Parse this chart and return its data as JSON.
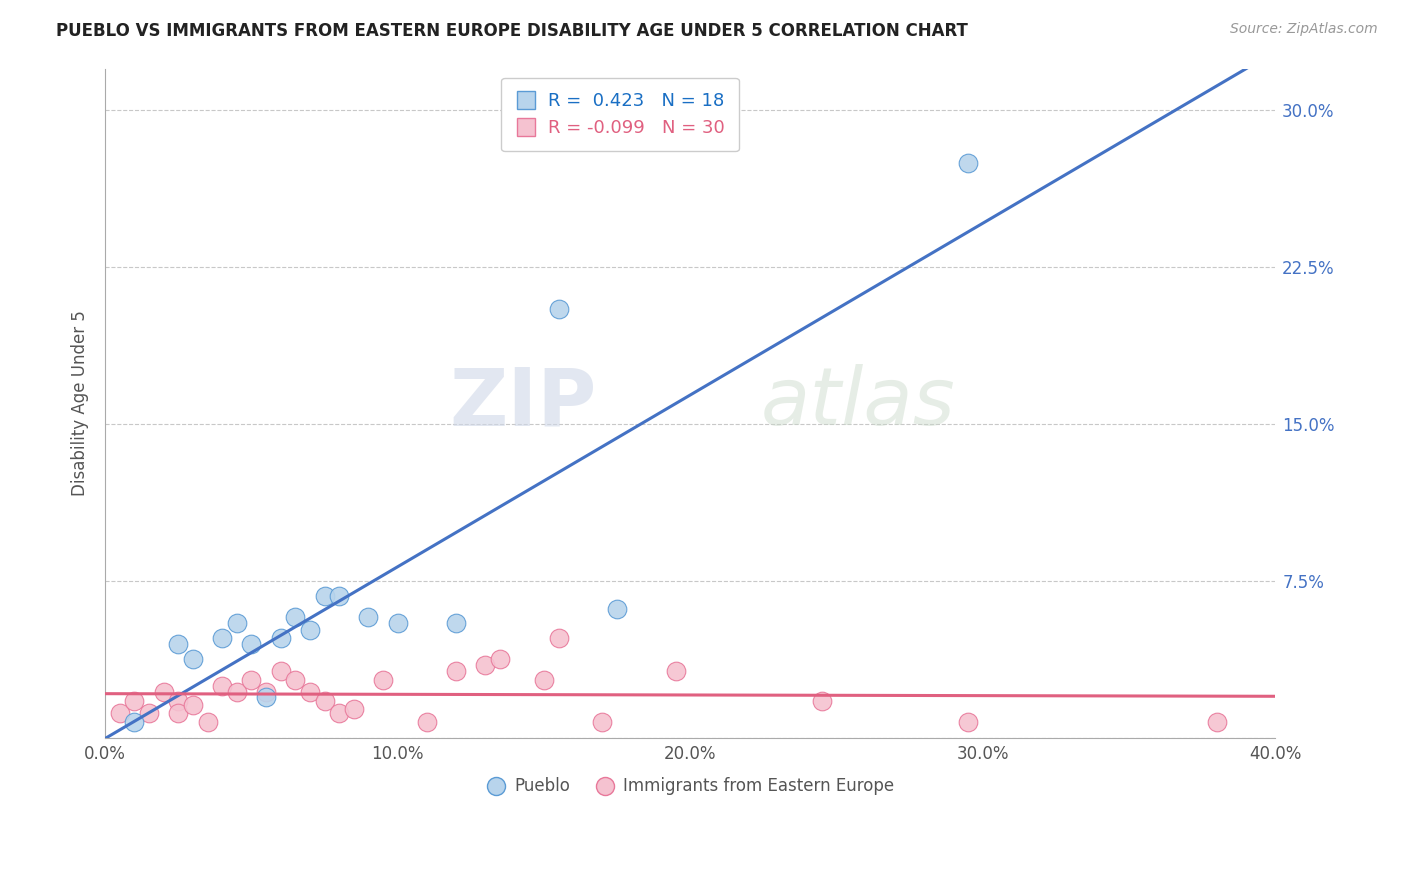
{
  "title": "PUEBLO VS IMMIGRANTS FROM EASTERN EUROPE DISABILITY AGE UNDER 5 CORRELATION CHART",
  "source": "Source: ZipAtlas.com",
  "ylabel_label": "Disability Age Under 5",
  "xlim": [
    0.0,
    0.4
  ],
  "ylim": [
    0.0,
    0.32
  ],
  "xticks": [
    0.0,
    0.1,
    0.2,
    0.3,
    0.4
  ],
  "yticks": [
    0.0,
    0.075,
    0.15,
    0.225,
    0.3
  ],
  "xtick_labels": [
    "0.0%",
    "10.0%",
    "20.0%",
    "30.0%",
    "40.0%"
  ],
  "ytick_labels": [
    "",
    "7.5%",
    "15.0%",
    "22.5%",
    "30.0%"
  ],
  "pueblo_scatter_x": [
    0.01,
    0.025,
    0.03,
    0.04,
    0.045,
    0.05,
    0.055,
    0.06,
    0.065,
    0.07,
    0.075,
    0.08,
    0.09,
    0.1,
    0.12,
    0.155,
    0.175,
    0.295
  ],
  "pueblo_scatter_y": [
    0.008,
    0.045,
    0.038,
    0.048,
    0.055,
    0.045,
    0.02,
    0.048,
    0.058,
    0.052,
    0.068,
    0.068,
    0.058,
    0.055,
    0.055,
    0.205,
    0.062,
    0.275
  ],
  "immigrants_scatter_x": [
    0.005,
    0.01,
    0.015,
    0.02,
    0.025,
    0.025,
    0.03,
    0.035,
    0.04,
    0.045,
    0.05,
    0.055,
    0.06,
    0.065,
    0.07,
    0.075,
    0.08,
    0.085,
    0.095,
    0.11,
    0.12,
    0.13,
    0.135,
    0.15,
    0.155,
    0.17,
    0.195,
    0.245,
    0.295,
    0.38
  ],
  "immigrants_scatter_y": [
    0.012,
    0.018,
    0.012,
    0.022,
    0.018,
    0.012,
    0.016,
    0.008,
    0.025,
    0.022,
    0.028,
    0.022,
    0.032,
    0.028,
    0.022,
    0.018,
    0.012,
    0.014,
    0.028,
    0.008,
    0.032,
    0.035,
    0.038,
    0.028,
    0.048,
    0.008,
    0.032,
    0.018,
    0.008,
    0.008
  ],
  "pueblo_R": 0.423,
  "pueblo_N": 18,
  "immigrants_R": -0.099,
  "immigrants_N": 30,
  "pueblo_color": "#b8d4ec",
  "pueblo_edge_color": "#5b9bd5",
  "immigrants_color": "#f5c2d0",
  "immigrants_edge_color": "#e8789a",
  "pueblo_line_color": "#4472c4",
  "immigrants_line_color": "#e06080",
  "legend_pueblo_color": "#1a6fc4",
  "legend_imm_color": "#e06080",
  "watermark_zip": "ZIP",
  "watermark_atlas": "atlas",
  "background_color": "#ffffff",
  "grid_color": "#c8c8c8"
}
